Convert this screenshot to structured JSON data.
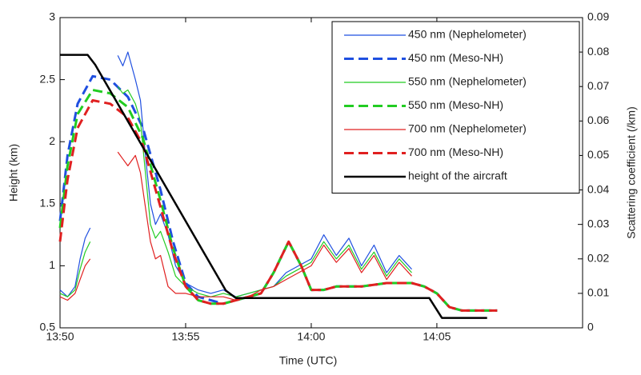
{
  "chart_data": {
    "type": "line",
    "xlabel": "Time (UTC)",
    "ylabel": "Height (km)",
    "y2label": "Scattering coefficient (/km)",
    "xlim": [
      830,
      850.8
    ],
    "xticks": [
      {
        "value": 830,
        "label": "13:50"
      },
      {
        "value": 835,
        "label": "13:55"
      },
      {
        "value": 840,
        "label": "14:00"
      },
      {
        "value": 845,
        "label": "14:05"
      }
    ],
    "ylim": [
      0.5,
      3
    ],
    "yticks": [
      0.5,
      1,
      1.5,
      2,
      2.5,
      3
    ],
    "y2lim": [
      0,
      0.09
    ],
    "y2ticks": [
      0,
      0.01,
      0.02,
      0.03,
      0.04,
      0.05,
      0.06,
      0.07,
      0.08,
      0.09
    ],
    "legend": "upper right",
    "series": [
      {
        "name": "450 nm (Nephelometer)",
        "color": "#1f4fe0",
        "style": "solid",
        "axis": "y2",
        "x": [
          830,
          830.3,
          830.6,
          830.8,
          831,
          831.2,
          831.25,
          832.3,
          832.5,
          832.7,
          833,
          833.2,
          833.4,
          833.6,
          833.8,
          834,
          834.3,
          834.6,
          835,
          835.5,
          836,
          836.5,
          837,
          837.5,
          838,
          838.5,
          839,
          839.5,
          840,
          840.5,
          841,
          841.5,
          842,
          842.5,
          843,
          843.5,
          844
        ],
        "values": [
          0.011,
          0.009,
          0.012,
          0.02,
          0.026,
          0.029,
          null,
          0.079,
          0.076,
          0.08,
          0.072,
          0.066,
          0.05,
          0.036,
          0.03,
          0.033,
          0.027,
          0.018,
          0.013,
          0.011,
          0.01,
          0.011,
          0.009,
          0.01,
          0.011,
          0.012,
          0.016,
          0.018,
          0.02,
          0.027,
          0.021,
          0.026,
          0.018,
          0.024,
          0.016,
          0.021,
          0.017
        ]
      },
      {
        "name": "450 nm (Meso-NH)",
        "color": "#1f4fe0",
        "style": "dashed",
        "axis": "y2",
        "x": [
          830,
          830.3,
          830.7,
          831.3,
          832,
          832.7,
          833.3,
          834,
          834.5,
          835,
          835.5,
          836,
          836.5,
          837,
          837.5,
          838,
          838.5,
          839.1,
          839.6,
          840,
          840.5,
          841,
          842,
          843,
          844,
          844.5,
          845,
          845.5,
          846,
          846.5,
          847.4
        ],
        "values": [
          0.031,
          0.05,
          0.065,
          0.073,
          0.072,
          0.067,
          0.058,
          0.04,
          0.025,
          0.013,
          0.009,
          0.008,
          0.007,
          0.008,
          0.009,
          0.01,
          0.016,
          0.025,
          0.018,
          0.011,
          0.011,
          0.012,
          0.012,
          0.013,
          0.013,
          0.012,
          0.01,
          0.006,
          0.005,
          0.005,
          0.005
        ]
      },
      {
        "name": "550 nm (Nephelometer)",
        "color": "#22cc22",
        "style": "solid",
        "axis": "y2",
        "x": [
          830,
          830.3,
          830.6,
          830.8,
          831,
          831.2,
          831.25,
          832.3,
          832.5,
          832.7,
          833,
          833.2,
          833.4,
          833.6,
          833.8,
          834,
          834.3,
          834.6,
          835,
          835.5,
          836,
          836.5,
          837,
          837.5,
          838,
          838.5,
          839,
          839.5,
          840,
          840.5,
          841,
          841.5,
          842,
          842.5,
          843,
          843.5,
          844
        ],
        "values": [
          0.01,
          0.009,
          0.011,
          0.017,
          0.022,
          0.025,
          null,
          0.07,
          0.068,
          0.069,
          0.065,
          0.06,
          0.045,
          0.03,
          0.026,
          0.028,
          0.022,
          0.015,
          0.012,
          0.01,
          0.009,
          0.01,
          0.009,
          0.01,
          0.011,
          0.012,
          0.015,
          0.017,
          0.019,
          0.025,
          0.02,
          0.024,
          0.017,
          0.022,
          0.015,
          0.02,
          0.016
        ]
      },
      {
        "name": "550 nm (Meso-NH)",
        "color": "#22cc22",
        "style": "dashed",
        "axis": "y2",
        "x": [
          830,
          830.3,
          830.7,
          831.3,
          832,
          832.7,
          833.3,
          834,
          834.5,
          835,
          835.5,
          836,
          836.5,
          837,
          837.5,
          838,
          838.5,
          839.1,
          839.6,
          840,
          840.5,
          841,
          842,
          843,
          844,
          844.5,
          845,
          845.5,
          846,
          846.5,
          847.4
        ],
        "values": [
          0.029,
          0.047,
          0.062,
          0.069,
          0.068,
          0.064,
          0.055,
          0.037,
          0.023,
          0.012,
          0.008,
          0.007,
          0.007,
          0.008,
          0.009,
          0.01,
          0.016,
          0.025,
          0.018,
          0.011,
          0.011,
          0.012,
          0.012,
          0.013,
          0.013,
          0.012,
          0.01,
          0.006,
          0.005,
          0.005,
          0.005
        ]
      },
      {
        "name": "700 nm (Nephelometer)",
        "color": "#e02020",
        "style": "solid",
        "axis": "y2",
        "x": [
          830,
          830.3,
          830.6,
          830.8,
          831,
          831.2,
          831.25,
          832.3,
          832.5,
          832.7,
          833,
          833.2,
          833.4,
          833.6,
          833.8,
          834,
          834.3,
          834.6,
          835,
          835.5,
          836,
          836.5,
          837,
          837.5,
          838,
          838.5,
          839,
          839.5,
          840,
          840.5,
          841,
          841.5,
          842,
          842.5,
          843,
          843.5,
          844
        ],
        "values": [
          0.009,
          0.008,
          0.01,
          0.014,
          0.018,
          0.02,
          null,
          0.051,
          0.049,
          0.047,
          0.05,
          0.045,
          0.035,
          0.025,
          0.02,
          0.021,
          0.012,
          0.01,
          0.01,
          0.009,
          0.009,
          0.009,
          0.008,
          0.009,
          0.011,
          0.012,
          0.014,
          0.016,
          0.018,
          0.024,
          0.019,
          0.023,
          0.016,
          0.021,
          0.014,
          0.019,
          0.015
        ]
      },
      {
        "name": "700 nm (Meso-NH)",
        "color": "#e02020",
        "style": "dashed",
        "axis": "y2",
        "x": [
          830,
          830.3,
          830.7,
          831.3,
          832,
          832.7,
          833.3,
          834,
          834.5,
          835,
          835.5,
          836,
          836.5,
          837,
          837.5,
          838,
          838.5,
          839.1,
          839.6,
          840,
          840.5,
          841,
          842,
          843,
          844,
          844.5,
          845,
          845.5,
          846,
          846.5,
          847.4
        ],
        "values": [
          0.025,
          0.043,
          0.058,
          0.066,
          0.065,
          0.061,
          0.053,
          0.035,
          0.022,
          0.012,
          0.008,
          0.007,
          0.007,
          0.008,
          0.009,
          0.01,
          0.016,
          0.025,
          0.018,
          0.011,
          0.011,
          0.012,
          0.012,
          0.013,
          0.013,
          0.012,
          0.01,
          0.006,
          0.005,
          0.005,
          0.005
        ]
      },
      {
        "name": "height of the aircraft",
        "color": "#000000",
        "style": "thick",
        "axis": "y",
        "x": [
          830,
          831.1,
          831.4,
          836.6,
          837,
          844.7,
          845.2,
          847
        ],
        "values": [
          2.7,
          2.7,
          2.62,
          0.8,
          0.74,
          0.74,
          0.58,
          0.58
        ]
      }
    ]
  }
}
